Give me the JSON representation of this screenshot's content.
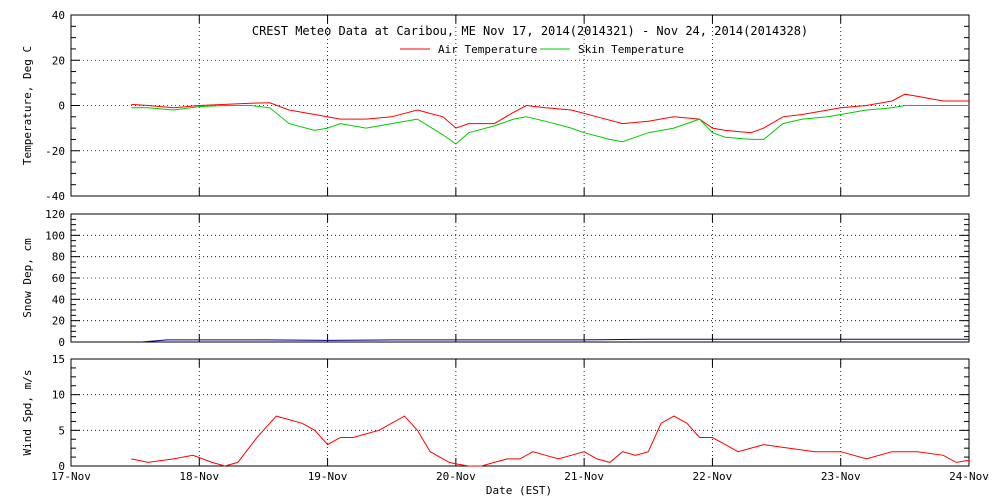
{
  "title": "CREST Meteo Data at Caribou, ME   Nov 17, 2014(2014321) - Nov 24, 2014(2014328)",
  "xlabel": "Date (EST)",
  "chart_data": [
    {
      "type": "line",
      "ylabel": "Temperature, Deg C",
      "ylim": [
        -40,
        40
      ],
      "yticks": [
        "-40",
        "-20",
        "0",
        "20",
        "40"
      ],
      "x_categories": [
        "17-Nov",
        "18-Nov",
        "19-Nov",
        "20-Nov",
        "21-Nov",
        "22-Nov",
        "23-Nov",
        "24-Nov"
      ],
      "xlim": [
        0,
        7
      ],
      "grid": true,
      "legend": "top-center",
      "series": [
        {
          "name": "Air Temperature",
          "color": "#ff0000",
          "x": [
            0.47,
            0.6,
            0.8,
            1.0,
            1.2,
            1.4,
            1.55,
            1.7,
            1.9,
            2.1,
            2.3,
            2.5,
            2.7,
            2.9,
            3.0,
            3.1,
            3.3,
            3.45,
            3.55,
            3.7,
            3.9,
            4.1,
            4.3,
            4.5,
            4.7,
            4.9,
            5.0,
            5.1,
            5.3,
            5.4,
            5.55,
            5.7,
            5.9,
            6.0,
            6.2,
            6.4,
            6.5,
            6.6,
            6.8,
            6.9,
            7.0
          ],
          "y": [
            0.5,
            0,
            -1,
            0,
            0.5,
            1,
            1.2,
            -2,
            -4,
            -6,
            -6,
            -5,
            -2,
            -5,
            -10,
            -8,
            -8,
            -3,
            0,
            -1,
            -2,
            -5,
            -8,
            -7,
            -5,
            -6,
            -10,
            -11,
            -12,
            -10,
            -5,
            -4,
            -2,
            -1,
            0,
            2,
            5,
            4,
            2,
            2,
            2
          ]
        },
        {
          "name": "Skin Temperature",
          "color": "#00cc00",
          "x": [
            0.47,
            0.6,
            0.8,
            1.0,
            1.2,
            1.4,
            1.55,
            1.7,
            1.9,
            2.0,
            2.1,
            2.3,
            2.5,
            2.7,
            2.9,
            3.0,
            3.1,
            3.3,
            3.45,
            3.55,
            3.7,
            3.9,
            4.0,
            4.2,
            4.3,
            4.5,
            4.7,
            4.9,
            5.0,
            5.1,
            5.3,
            5.4,
            5.55,
            5.7,
            5.9,
            6.0,
            6.2,
            6.4,
            6.5,
            6.6,
            6.8,
            6.9,
            7.0
          ],
          "y": [
            -1,
            -1,
            -2,
            -0.5,
            0,
            0,
            -1,
            -8,
            -11,
            -10,
            -8,
            -10,
            -8,
            -6,
            -13,
            -17,
            -12,
            -9,
            -6,
            -5,
            -7,
            -10,
            -12,
            -15,
            -16,
            -12,
            -10,
            -6,
            -12,
            -14,
            -15,
            -15,
            -8,
            -6,
            -5,
            -4,
            -2,
            -1,
            0,
            0,
            0,
            0,
            0
          ]
        }
      ]
    },
    {
      "type": "line",
      "ylabel": "Snow Dep, cm",
      "ylim": [
        0,
        120
      ],
      "yticks": [
        "0",
        "20",
        "40",
        "60",
        "80",
        "100",
        "120"
      ],
      "x_categories": [
        "17-Nov",
        "18-Nov",
        "19-Nov",
        "20-Nov",
        "21-Nov",
        "22-Nov",
        "23-Nov",
        "24-Nov"
      ],
      "xlim": [
        0,
        7
      ],
      "grid": true,
      "series": [
        {
          "color": "#00008b",
          "x": [
            0.55,
            0.75,
            1.0,
            1.5,
            2.0,
            2.5,
            3.0,
            3.5,
            4.0,
            4.5,
            5.0,
            5.5,
            6.0,
            6.5,
            7.0
          ],
          "y": [
            0,
            2,
            2,
            2,
            1.5,
            2,
            2,
            2,
            2,
            2.5,
            2.5,
            2.5,
            2.5,
            2.5,
            2.5
          ]
        }
      ]
    },
    {
      "type": "line",
      "ylabel": "Wind Spd, m/s",
      "ylim": [
        0,
        15
      ],
      "yticks": [
        "0",
        "5",
        "10",
        "15"
      ],
      "x_categories": [
        "17-Nov",
        "18-Nov",
        "19-Nov",
        "20-Nov",
        "21-Nov",
        "22-Nov",
        "23-Nov",
        "24-Nov"
      ],
      "xlim": [
        0,
        7
      ],
      "grid": true,
      "series": [
        {
          "color": "#ff0000",
          "x": [
            0.47,
            0.6,
            0.8,
            0.95,
            1.1,
            1.2,
            1.3,
            1.45,
            1.5,
            1.6,
            1.8,
            1.9,
            2.0,
            2.1,
            2.2,
            2.3,
            2.4,
            2.5,
            2.6,
            2.7,
            2.8,
            2.9,
            2.95,
            3.0,
            3.1,
            3.2,
            3.3,
            3.4,
            3.5,
            3.6,
            3.7,
            3.8,
            3.9,
            4.0,
            4.1,
            4.2,
            4.3,
            4.4,
            4.5,
            4.6,
            4.7,
            4.8,
            4.9,
            5.0,
            5.1,
            5.2,
            5.4,
            5.6,
            5.8,
            6.0,
            6.2,
            6.4,
            6.6,
            6.8,
            6.9,
            7.0
          ],
          "y": [
            1,
            0.5,
            1,
            1.5,
            0.5,
            0,
            0.5,
            4,
            5,
            7,
            6,
            5,
            3,
            4,
            4,
            4.5,
            5,
            6,
            7,
            5,
            2,
            1,
            0.5,
            0.3,
            0,
            0,
            0.5,
            1,
            1,
            2,
            1.5,
            1,
            1.5,
            2,
            1,
            0.5,
            2,
            1.5,
            2,
            6,
            7,
            6,
            4,
            4,
            3,
            2,
            3,
            2.5,
            2,
            2,
            1,
            2,
            2,
            1.5,
            0.5,
            0.8
          ]
        }
      ]
    }
  ]
}
